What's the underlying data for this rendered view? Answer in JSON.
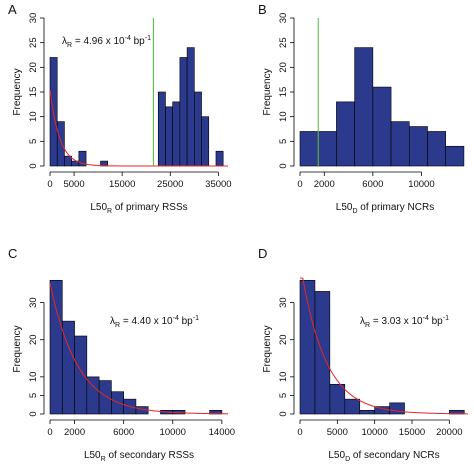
{
  "chart_data": [
    {
      "id": "A",
      "type": "bar",
      "panel_letter": "A",
      "xlabel": {
        "main": "L50",
        "sub": "R",
        "rest": " of primary RSSs"
      },
      "ylabel": "Frequency",
      "xlim": [
        0,
        37000
      ],
      "ylim": [
        0,
        30
      ],
      "xticks": [
        0,
        5000,
        15000,
        25000,
        35000
      ],
      "xtick_labels": [
        "0",
        "5000",
        "15000",
        "25000",
        "35000"
      ],
      "yticks": [
        0,
        5,
        10,
        15,
        20,
        25,
        30
      ],
      "ytick_labels": [
        "0",
        "5",
        "10",
        "15",
        "20",
        "25",
        "30"
      ],
      "bin_edges": [
        0,
        1500,
        3000,
        4500,
        6000,
        7500,
        9000,
        10500,
        12000,
        13500,
        15000,
        16500,
        18000,
        19500,
        21000,
        22500,
        24000,
        25500,
        27000,
        28500,
        30000,
        31500,
        33000,
        34500,
        36000
      ],
      "counts": [
        22,
        9,
        2,
        1,
        3,
        0,
        0,
        1,
        0,
        0,
        0,
        0,
        0,
        0,
        0,
        15,
        12,
        13,
        22,
        24,
        15,
        10,
        0,
        3
      ],
      "bar_color": "#2b3a8c",
      "fit_curve": {
        "lambda": 0.000496,
        "scale": 31000,
        "color": "#e82525"
      },
      "vline": {
        "x": 21500,
        "color": "#5fbf4a"
      },
      "annotation": {
        "lambda_symbol": "λ",
        "sub": "R",
        "mid": " = 4.96 x 10",
        "sup": "-4",
        "unit": " bp",
        "unit_sup": "-1"
      }
    },
    {
      "id": "B",
      "type": "bar",
      "panel_letter": "B",
      "xlabel": {
        "main": "L50",
        "sub": "D",
        "rest": " of primary NCRs"
      },
      "ylabel": "Frequency",
      "xlim": [
        0,
        14000
      ],
      "ylim": [
        0,
        30
      ],
      "xticks": [
        0,
        2000,
        6000,
        10000
      ],
      "xtick_labels": [
        "0",
        "2000",
        "6000",
        "10000"
      ],
      "yticks": [
        0,
        5,
        10,
        15,
        20,
        25,
        30
      ],
      "ytick_labels": [
        "0",
        "5",
        "10",
        "15",
        "20",
        "25",
        "30"
      ],
      "bin_edges": [
        0,
        1500,
        3000,
        4500,
        6000,
        7500,
        9000,
        10500,
        12000,
        13500
      ],
      "counts": [
        7,
        7,
        13,
        24,
        16,
        9,
        8,
        7,
        4
      ],
      "bar_color": "#2b3a8c",
      "vline": {
        "x": 1500,
        "color": "#5fbf4a"
      }
    },
    {
      "id": "C",
      "type": "bar",
      "panel_letter": "C",
      "xlabel": {
        "main": "L50",
        "sub": "R",
        "rest": " of secondary RSSs"
      },
      "ylabel": "Frequency",
      "xlim": [
        0,
        14500
      ],
      "ylim": [
        0,
        35
      ],
      "xticks": [
        0,
        2000,
        6000,
        10000,
        14000
      ],
      "xtick_labels": [
        "0",
        "2000",
        "6000",
        "10000",
        "14000"
      ],
      "yticks": [
        0,
        5,
        10,
        20,
        30
      ],
      "ytick_labels": [
        "0",
        "5",
        "10",
        "20",
        "30"
      ],
      "bin_edges": [
        0,
        1000,
        2000,
        3000,
        4000,
        5000,
        6000,
        7000,
        8000,
        9000,
        10000,
        11000,
        12000,
        13000,
        14000
      ],
      "counts": [
        36,
        25,
        21,
        10,
        9,
        6,
        4,
        2,
        0,
        1,
        1,
        0,
        0,
        1
      ],
      "bar_color": "#2b3a8c",
      "fit_curve": {
        "lambda": 0.00044,
        "scale": 80000,
        "color": "#e82525"
      },
      "annotation": {
        "lambda_symbol": "λ",
        "sub": "R",
        "mid": " = 4.40 x 10",
        "sup": "-4",
        "unit": " bp",
        "unit_sup": "-1"
      }
    },
    {
      "id": "D",
      "type": "bar",
      "panel_letter": "D",
      "xlabel": {
        "main": "L50",
        "sub": "D",
        "rest": " of secondary NCRs"
      },
      "ylabel": "Frequency",
      "xlim": [
        0,
        22500
      ],
      "ylim": [
        0,
        35
      ],
      "xticks": [
        0,
        5000,
        10000,
        15000,
        20000
      ],
      "xtick_labels": [
        "0",
        "5000",
        "10000",
        "15000",
        "20000"
      ],
      "yticks": [
        0,
        5,
        10,
        20,
        30
      ],
      "ytick_labels": [
        "0",
        "5",
        "10",
        "20",
        "30"
      ],
      "bin_edges": [
        0,
        2000,
        4000,
        6000,
        8000,
        10000,
        12000,
        14000,
        16000,
        18000,
        20000,
        22000
      ],
      "counts": [
        36,
        33,
        8,
        4,
        1,
        2,
        3,
        0,
        0,
        0,
        1
      ],
      "bar_color": "#2b3a8c",
      "fit_curve": {
        "lambda": 0.000303,
        "scale": 135000,
        "color": "#e82525"
      },
      "annotation": {
        "lambda_symbol": "λ",
        "sub": "R",
        "mid": " = 3.03 x 10",
        "sup": "-4",
        "unit": " bp",
        "unit_sup": "-1"
      }
    }
  ]
}
